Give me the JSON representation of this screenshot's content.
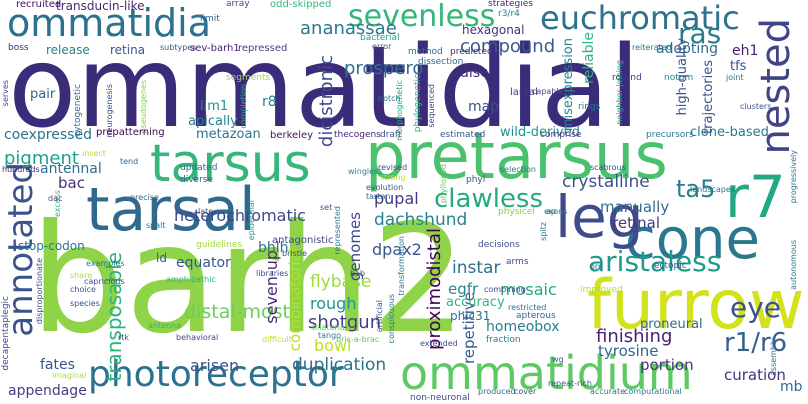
{
  "words": [
    {
      "text": "ommatidial",
      "color": "#3b2c7a"
    },
    {
      "text": "barh2",
      "color": "#8fd448"
    },
    {
      "text": "tarsus",
      "color": "#35b779"
    },
    {
      "text": "pretarsus",
      "color": "#4ac16d"
    },
    {
      "text": "tarsal",
      "color": "#31688e"
    },
    {
      "text": "furrow",
      "color": "#d2e21b"
    },
    {
      "text": "cone",
      "color": "#2a788e"
    },
    {
      "text": "leg",
      "color": "#3e4a89"
    },
    {
      "text": "r7",
      "color": "#22a884"
    },
    {
      "text": "ommatidia",
      "color": "#2c728e"
    },
    {
      "text": "ommatidium",
      "color": "#5ec962"
    },
    {
      "text": "photoreceptor",
      "color": "#2c728e"
    },
    {
      "text": "annotated",
      "color": "#3b528b"
    },
    {
      "text": "euchromatic",
      "color": "#2d718e"
    },
    {
      "text": "sevenless",
      "color": "#32b67a"
    },
    {
      "text": "nested",
      "color": "#414487"
    },
    {
      "text": "aristaless",
      "color": "#1f998a"
    },
    {
      "text": "clawless",
      "color": "#25ab82"
    },
    {
      "text": "eye",
      "color": "#3b528b"
    },
    {
      "text": "r1/r6",
      "color": "#355f8d"
    },
    {
      "text": "ras",
      "color": "#277f8e"
    },
    {
      "text": "ta5",
      "color": "#287c8e"
    },
    {
      "text": "transposable",
      "color": "#2db27d"
    },
    {
      "text": "pigment",
      "color": "#1fa187"
    },
    {
      "text": "compound",
      "color": "#365c8d"
    },
    {
      "text": "prospero",
      "color": "#2e6f8e"
    },
    {
      "text": "dicistronic",
      "color": "#3d4e8a"
    },
    {
      "text": "ananassae",
      "color": "#2a788e"
    },
    {
      "text": "crystalline",
      "color": "#3b528b"
    },
    {
      "text": "dachshund",
      "color": "#26828e"
    },
    {
      "text": "distal-most",
      "color": "#6ccd5a"
    },
    {
      "text": "heterochromatic",
      "color": "#3e4989"
    },
    {
      "text": "proximodistal",
      "color": "#440154"
    },
    {
      "text": "shotgun",
      "color": "#433e85"
    },
    {
      "text": "finishing",
      "color": "#482173"
    },
    {
      "text": "flybase",
      "color": "#9bd93c"
    },
    {
      "text": "instar",
      "color": "#2c728e"
    },
    {
      "text": "duplication",
      "color": "#2d708e"
    },
    {
      "text": "arisen",
      "color": "#3b528b"
    },
    {
      "text": "seven-up",
      "color": "#482979"
    },
    {
      "text": "rough",
      "color": "#1f958b"
    },
    {
      "text": "combinatorial",
      "color": "#b5de2b"
    },
    {
      "text": "genomes",
      "color": "#3f4788"
    },
    {
      "text": "bowl",
      "color": "#bddf26"
    },
    {
      "text": "pupal",
      "color": "#443983"
    },
    {
      "text": "dpax2",
      "color": "#39568c"
    },
    {
      "text": "egfr",
      "color": "#24878e"
    },
    {
      "text": "mosaic",
      "color": "#22a884"
    },
    {
      "text": "retinal",
      "color": "#453882"
    },
    {
      "text": "manually",
      "color": "#2e6e8e"
    },
    {
      "text": "tyrosine",
      "color": "#31688e"
    },
    {
      "text": "portion",
      "color": "#463480"
    },
    {
      "text": "homeobox",
      "color": "#277f8e"
    },
    {
      "text": "repetitive",
      "color": "#38588c"
    },
    {
      "text": "curation",
      "color": "#46307e"
    },
    {
      "text": "mb",
      "color": "#31688e"
    },
    {
      "text": "bac",
      "color": "#472d7b"
    },
    {
      "text": "antennal",
      "color": "#2d708e"
    },
    {
      "text": "appendage",
      "color": "#433d84"
    },
    {
      "text": "fates",
      "color": "#3a548c"
    },
    {
      "text": "equator",
      "color": "#38588c"
    },
    {
      "text": "bhlh",
      "color": "#2c718e"
    },
    {
      "text": "ld",
      "color": "#39558c"
    },
    {
      "text": "map",
      "color": "#3b528b"
    },
    {
      "text": "disc",
      "color": "#472c7a"
    },
    {
      "text": "reliable",
      "color": "#2eb37c"
    },
    {
      "text": "adopting",
      "color": "#2f6c8e"
    },
    {
      "text": "eh1",
      "color": "#481f70"
    },
    {
      "text": "tfs",
      "color": "#3b528b"
    },
    {
      "text": "r8",
      "color": "#25848e"
    },
    {
      "text": "lim1",
      "color": "#21918c"
    },
    {
      "text": "apically",
      "color": "#25858e"
    },
    {
      "text": "metazoan",
      "color": "#2a778e"
    },
    {
      "text": "coexpressed",
      "color": "#2d708e"
    },
    {
      "text": "pair",
      "color": "#32658e"
    },
    {
      "text": "wild-derived",
      "color": "#20938c"
    },
    {
      "text": "clone-based",
      "color": "#2a788e"
    },
    {
      "text": "misexpression",
      "color": "#25848e"
    },
    {
      "text": "high-quality",
      "color": "#3b528b"
    },
    {
      "text": "trajectories",
      "color": "#3b528b"
    },
    {
      "text": "proneural",
      "color": "#2f6c8e"
    },
    {
      "text": "accuracy",
      "color": "#32b67a"
    },
    {
      "text": "phic31",
      "color": "#2c728e"
    },
    {
      "text": "stop-codon",
      "color": "#2a768e"
    },
    {
      "text": "hexagonal",
      "color": "#472f7d"
    },
    {
      "text": "transducin-like",
      "color": "#482576"
    },
    {
      "text": "release",
      "color": "#287d8e"
    },
    {
      "text": "retina",
      "color": "#38588c"
    },
    {
      "text": "recruited",
      "color": "#470d60"
    },
    {
      "text": "sev-barh1",
      "color": "#482374"
    },
    {
      "text": "repressed",
      "color": "#433e85"
    },
    {
      "text": "odd-skipped",
      "color": "#35b779"
    },
    {
      "text": "array",
      "color": "#3d4d8a"
    },
    {
      "text": "limit",
      "color": "#31678e"
    },
    {
      "text": "strategies",
      "color": "#482475"
    },
    {
      "text": "r3/r4",
      "color": "#2a788e"
    },
    {
      "text": "boss",
      "color": "#472c7a"
    },
    {
      "text": "subtypes",
      "color": "#38598c"
    },
    {
      "text": "bacterial",
      "color": "#20a386"
    },
    {
      "text": "error",
      "color": "#3b528b"
    },
    {
      "text": "method",
      "color": "#2d708e"
    },
    {
      "text": "predicted",
      "color": "#472a7a"
    },
    {
      "text": "dissection",
      "color": "#31688e"
    },
    {
      "text": "reiterated",
      "color": "#2a788e"
    },
    {
      "text": "rotund",
      "color": "#46327e"
    },
    {
      "text": "notum",
      "color": "#25848e"
    },
    {
      "text": "joint",
      "color": "#2c738e"
    },
    {
      "text": "serves",
      "color": "#3e4a89"
    },
    {
      "text": "cytogenetic",
      "color": "#2e6f8e"
    },
    {
      "text": "neurogenesis",
      "color": "#3c4f8a"
    },
    {
      "text": "pseudogenes",
      "color": "#84d44b"
    },
    {
      "text": "segments",
      "color": "#9bd93c"
    },
    {
      "text": "completion",
      "color": "#27ad81"
    },
    {
      "text": "phylogenetic",
      "color": "#2fb47c"
    },
    {
      "text": "morphogenetic",
      "color": "#22a884"
    },
    {
      "text": "notch",
      "color": "#2a778e"
    },
    {
      "text": "sequenced",
      "color": "#3e4a89"
    },
    {
      "text": "larval",
      "color": "#443a83"
    },
    {
      "text": "capable",
      "color": "#3e4a89"
    },
    {
      "text": "rings",
      "color": "#2c728e"
    },
    {
      "text": "neighbor-joining",
      "color": "#22a884"
    },
    {
      "text": "clusters",
      "color": "#3b528b"
    },
    {
      "text": "progressively",
      "color": "#2a778e"
    },
    {
      "text": "prepatterning",
      "color": "#440154"
    },
    {
      "text": "berkeley",
      "color": "#471365"
    },
    {
      "text": "thecogens",
      "color": "#482677"
    },
    {
      "text": "draft",
      "color": "#3b528b"
    },
    {
      "text": "estimated",
      "color": "#38588c"
    },
    {
      "text": "comprise",
      "color": "#424086"
    },
    {
      "text": "precursors",
      "color": "#2a788e"
    },
    {
      "text": "hundreds",
      "color": "#482878"
    },
    {
      "text": "insect",
      "color": "#b5de2b"
    },
    {
      "text": "tend",
      "color": "#31678e"
    },
    {
      "text": "updated",
      "color": "#31688e"
    },
    {
      "text": "diverse",
      "color": "#355f8d"
    },
    {
      "text": "wingless",
      "color": "#24868e"
    },
    {
      "text": "evolution",
      "color": "#3b528b"
    },
    {
      "text": "tartan",
      "color": "#31688e"
    },
    {
      "text": "revised",
      "color": "#3e4a89"
    },
    {
      "text": "strong",
      "color": "#c0df25"
    },
    {
      "text": "phyllopod",
      "color": "#5ec962"
    },
    {
      "text": "phyl",
      "color": "#3b528b"
    },
    {
      "text": "selection",
      "color": "#2a788e"
    },
    {
      "text": "scabrous",
      "color": "#3b528b"
    },
    {
      "text": "landscapes",
      "color": "#2a788e"
    },
    {
      "text": "excess",
      "color": "#35b779"
    },
    {
      "text": "dac",
      "color": "#3e4a89"
    },
    {
      "text": "precise",
      "color": "#31688e"
    },
    {
      "text": "late",
      "color": "#3b528b"
    },
    {
      "text": "spalt",
      "color": "#2a788e"
    },
    {
      "text": "epidermal",
      "color": "#1f9e89"
    },
    {
      "text": "set",
      "color": "#3b528b"
    },
    {
      "text": "represented",
      "color": "#2a788e"
    },
    {
      "text": "physicel",
      "color": "#7ad151"
    },
    {
      "text": "ap",
      "color": "#3b528b"
    },
    {
      "text": "decisions",
      "color": "#3b528b"
    },
    {
      "text": "spitz",
      "color": "#2c728e"
    },
    {
      "text": "exons",
      "color": "#2a788e"
    },
    {
      "text": "guidelines",
      "color": "#9fda3a"
    },
    {
      "text": "antagonistic",
      "color": "#3e4a89"
    },
    {
      "text": "transformation",
      "color": "#2a788e"
    },
    {
      "text": "bristle",
      "color": "#3b528b"
    },
    {
      "text": "arms",
      "color": "#3e4a89"
    },
    {
      "text": "orn",
      "color": "#2a788e"
    },
    {
      "text": "ectopic",
      "color": "#3b528b"
    },
    {
      "text": "examples",
      "color": "#2c728e"
    },
    {
      "text": "share",
      "color": "#b5de2b"
    },
    {
      "text": "choice",
      "color": "#3b528b"
    },
    {
      "text": "species",
      "color": "#3e4a89"
    },
    {
      "text": "capricious",
      "color": "#3b528b"
    },
    {
      "text": "amphipathic",
      "color": "#2fb47c"
    },
    {
      "text": "libraries",
      "color": "#3e4a89"
    },
    {
      "text": "bab",
      "color": "#3b528b"
    },
    {
      "text": "tango",
      "color": "#2a788e"
    },
    {
      "text": "bilateria",
      "color": "#5ec962"
    },
    {
      "text": "conspicuous",
      "color": "#2a788e"
    },
    {
      "text": "artificial",
      "color": "#3b528b"
    },
    {
      "text": "combining",
      "color": "#3e4a89"
    },
    {
      "text": "restricted",
      "color": "#2a788e"
    },
    {
      "text": "improved",
      "color": "#b5de2b"
    },
    {
      "text": "apterous",
      "color": "#31688e"
    },
    {
      "text": "antenna",
      "color": "#2fb47c"
    },
    {
      "text": "behavioral",
      "color": "#3e4a89"
    },
    {
      "text": "rtk",
      "color": "#3b528b"
    },
    {
      "text": "difficult",
      "color": "#c0df25"
    },
    {
      "text": "bric-a-brac",
      "color": "#5ec962"
    },
    {
      "text": "fraction",
      "color": "#2a788e"
    },
    {
      "text": "extended",
      "color": "#3b528b"
    },
    {
      "text": "produced",
      "color": "#31688e"
    },
    {
      "text": "cover",
      "color": "#3e4a89"
    },
    {
      "text": "repeat-rich",
      "color": "#3b528b"
    },
    {
      "text": "accurate",
      "color": "#2c728e"
    },
    {
      "text": "computational",
      "color": "#2a788e"
    },
    {
      "text": "non-neuronal",
      "color": "#3e4a89"
    },
    {
      "text": "imaginal",
      "color": "#b5de2b"
    },
    {
      "text": "disproportionate",
      "color": "#3b528b"
    },
    {
      "text": "decapentaplegic",
      "color": "#3e4a89"
    },
    {
      "text": "assembly",
      "color": "#2c728e"
    },
    {
      "text": "autonomous",
      "color": "#2a788e"
    },
    {
      "text": "wg",
      "color": "#3b528b"
    }
  ]
}
